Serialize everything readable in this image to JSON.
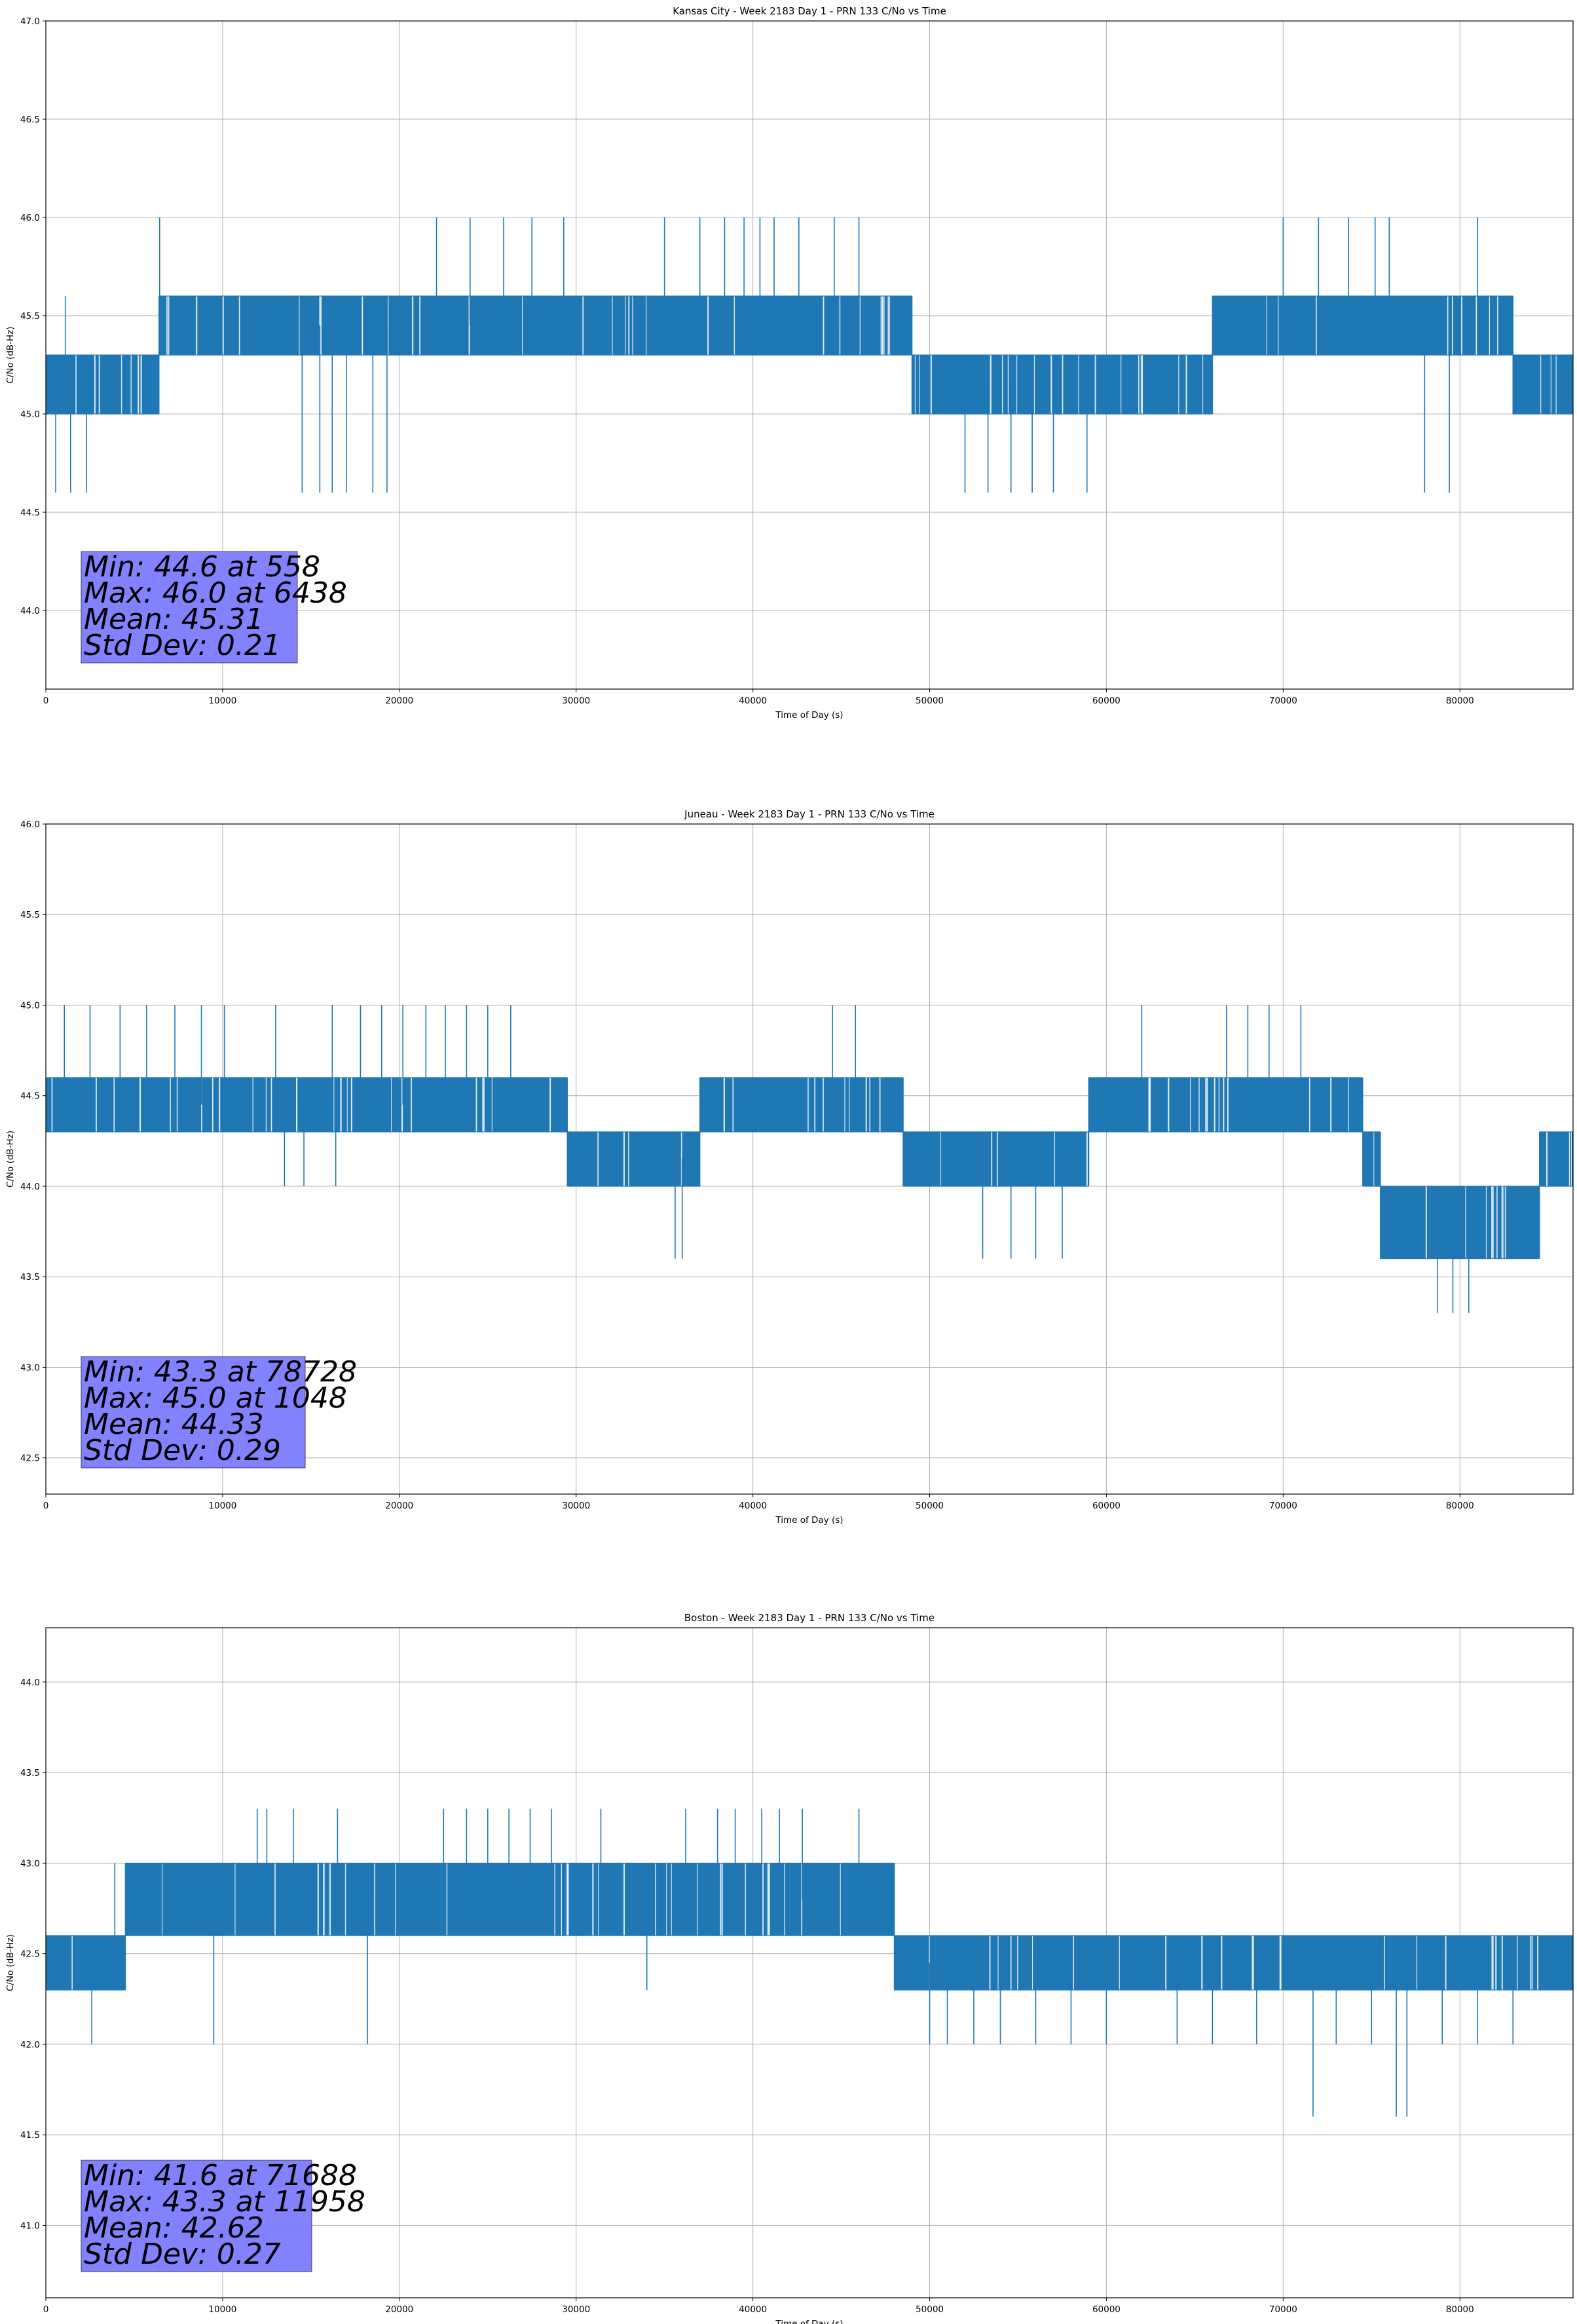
{
  "chart_data": [
    {
      "type": "line",
      "title": "Kansas City - Week 2183 Day 1 - PRN 133 C/No vs Time",
      "xlabel": "Time of Day (s)",
      "ylabel": "C/No (dB-Hz)",
      "xlim": [
        0,
        86400
      ],
      "ylim": [
        43.6,
        47.0
      ],
      "xticks": [
        0,
        10000,
        20000,
        30000,
        40000,
        50000,
        60000,
        70000,
        80000
      ],
      "yticks": [
        44.0,
        44.5,
        45.0,
        45.5,
        46.0,
        46.5,
        47.0
      ],
      "grid": true,
      "series_color": "#1f77b4",
      "stats_box_color": "#8080ff",
      "stats": [
        "Min: 44.6 at 558",
        "Max: 46.0 at 6438",
        "Mean: 45.31",
        "Std Dev: 0.21"
      ],
      "quantization": [
        44.6,
        45.0,
        45.3,
        45.6,
        46.0
      ],
      "regimes": [
        {
          "x": [
            0,
            6400
          ],
          "levels": [
            45.0,
            45.3
          ]
        },
        {
          "x": [
            6400,
            21000
          ],
          "levels": [
            45.3,
            45.6
          ]
        },
        {
          "x": [
            21000,
            49000
          ],
          "levels": [
            45.3,
            45.6
          ]
        },
        {
          "x": [
            49000,
            66000
          ],
          "levels": [
            45.0,
            45.3
          ]
        },
        {
          "x": [
            66000,
            83000
          ],
          "levels": [
            45.3,
            45.6
          ]
        },
        {
          "x": [
            83000,
            86400
          ],
          "levels": [
            45.0,
            45.3
          ]
        }
      ],
      "spikes": [
        {
          "x": 558,
          "y": 44.6
        },
        {
          "x": 1400,
          "y": 44.6
        },
        {
          "x": 2300,
          "y": 44.6
        },
        {
          "x": 1100,
          "y": 45.6
        },
        {
          "x": 6438,
          "y": 46.0
        },
        {
          "x": 14500,
          "y": 44.6
        },
        {
          "x": 15500,
          "y": 44.6
        },
        {
          "x": 16200,
          "y": 44.6
        },
        {
          "x": 17000,
          "y": 44.6
        },
        {
          "x": 18500,
          "y": 44.6
        },
        {
          "x": 19300,
          "y": 44.6
        },
        {
          "x": 22100,
          "y": 46.0
        },
        {
          "x": 24000,
          "y": 46.0
        },
        {
          "x": 25900,
          "y": 46.0
        },
        {
          "x": 27500,
          "y": 46.0
        },
        {
          "x": 29300,
          "y": 46.0
        },
        {
          "x": 35000,
          "y": 46.0
        },
        {
          "x": 37000,
          "y": 46.0
        },
        {
          "x": 38400,
          "y": 46.0
        },
        {
          "x": 39500,
          "y": 46.0
        },
        {
          "x": 40400,
          "y": 46.0
        },
        {
          "x": 41200,
          "y": 46.0
        },
        {
          "x": 42600,
          "y": 46.0
        },
        {
          "x": 44600,
          "y": 46.0
        },
        {
          "x": 46000,
          "y": 46.0
        },
        {
          "x": 52000,
          "y": 44.6
        },
        {
          "x": 53300,
          "y": 44.6
        },
        {
          "x": 54600,
          "y": 44.6
        },
        {
          "x": 55800,
          "y": 44.6
        },
        {
          "x": 57000,
          "y": 44.6
        },
        {
          "x": 58900,
          "y": 44.6
        },
        {
          "x": 70000,
          "y": 46.0
        },
        {
          "x": 72000,
          "y": 46.0
        },
        {
          "x": 73700,
          "y": 46.0
        },
        {
          "x": 75200,
          "y": 46.0
        },
        {
          "x": 76000,
          "y": 46.0
        },
        {
          "x": 81000,
          "y": 46.0
        },
        {
          "x": 78000,
          "y": 44.6
        },
        {
          "x": 79400,
          "y": 44.6
        }
      ]
    },
    {
      "type": "line",
      "title": "Juneau - Week 2183 Day 1 - PRN 133 C/No vs Time",
      "xlabel": "Time of Day (s)",
      "ylabel": "C/No (dB-Hz)",
      "xlim": [
        0,
        86400
      ],
      "ylim": [
        42.3,
        46.0
      ],
      "xticks": [
        0,
        10000,
        20000,
        30000,
        40000,
        50000,
        60000,
        70000,
        80000
      ],
      "yticks": [
        42.5,
        43.0,
        43.5,
        44.0,
        44.5,
        45.0,
        45.5,
        46.0
      ],
      "grid": true,
      "series_color": "#1f77b4",
      "stats_box_color": "#8080ff",
      "stats": [
        "Min: 43.3 at 78728",
        "Max: 45.0 at 1048",
        "Mean: 44.33",
        "Std Dev: 0.29"
      ],
      "quantization": [
        43.3,
        43.6,
        44.0,
        44.3,
        44.6,
        45.0
      ],
      "regimes": [
        {
          "x": [
            0,
            29500
          ],
          "levels": [
            44.3,
            44.6
          ]
        },
        {
          "x": [
            29500,
            37000
          ],
          "levels": [
            44.0,
            44.3
          ]
        },
        {
          "x": [
            37000,
            48500
          ],
          "levels": [
            44.3,
            44.6
          ]
        },
        {
          "x": [
            48500,
            59000
          ],
          "levels": [
            44.0,
            44.3
          ]
        },
        {
          "x": [
            59000,
            74500
          ],
          "levels": [
            44.3,
            44.6
          ]
        },
        {
          "x": [
            74500,
            75500
          ],
          "levels": [
            44.0,
            44.3
          ]
        },
        {
          "x": [
            75500,
            84500
          ],
          "levels": [
            43.6,
            44.0
          ]
        },
        {
          "x": [
            84500,
            86400
          ],
          "levels": [
            44.0,
            44.3
          ]
        }
      ],
      "spikes": [
        {
          "x": 1048,
          "y": 45.0
        },
        {
          "x": 2500,
          "y": 45.0
        },
        {
          "x": 4200,
          "y": 45.0
        },
        {
          "x": 5700,
          "y": 45.0
        },
        {
          "x": 7300,
          "y": 45.0
        },
        {
          "x": 8800,
          "y": 45.0
        },
        {
          "x": 10100,
          "y": 45.0
        },
        {
          "x": 13000,
          "y": 45.0
        },
        {
          "x": 16200,
          "y": 45.0
        },
        {
          "x": 17800,
          "y": 45.0
        },
        {
          "x": 19000,
          "y": 45.0
        },
        {
          "x": 20200,
          "y": 45.0
        },
        {
          "x": 21500,
          "y": 45.0
        },
        {
          "x": 22600,
          "y": 45.0
        },
        {
          "x": 23800,
          "y": 45.0
        },
        {
          "x": 25000,
          "y": 45.0
        },
        {
          "x": 26300,
          "y": 45.0
        },
        {
          "x": 13500,
          "y": 44.0
        },
        {
          "x": 14600,
          "y": 44.0
        },
        {
          "x": 16400,
          "y": 44.0
        },
        {
          "x": 35600,
          "y": 43.6
        },
        {
          "x": 36000,
          "y": 43.6
        },
        {
          "x": 44500,
          "y": 45.0
        },
        {
          "x": 45800,
          "y": 45.0
        },
        {
          "x": 53000,
          "y": 43.6
        },
        {
          "x": 54600,
          "y": 43.6
        },
        {
          "x": 56000,
          "y": 43.6
        },
        {
          "x": 57500,
          "y": 43.6
        },
        {
          "x": 62000,
          "y": 45.0
        },
        {
          "x": 66800,
          "y": 45.0
        },
        {
          "x": 68000,
          "y": 45.0
        },
        {
          "x": 69200,
          "y": 45.0
        },
        {
          "x": 71000,
          "y": 45.0
        },
        {
          "x": 78728,
          "y": 43.3
        },
        {
          "x": 79600,
          "y": 43.3
        },
        {
          "x": 80500,
          "y": 43.3
        }
      ]
    },
    {
      "type": "line",
      "title": "Boston - Week 2183 Day 1 - PRN 133 C/No vs Time",
      "xlabel": "Time of Day (s)",
      "ylabel": "C/No (dB-Hz)",
      "xlim": [
        0,
        86400
      ],
      "ylim": [
        40.6,
        44.3
      ],
      "xticks": [
        0,
        10000,
        20000,
        30000,
        40000,
        50000,
        60000,
        70000,
        80000
      ],
      "yticks": [
        41.0,
        41.5,
        42.0,
        42.5,
        43.0,
        43.5,
        44.0
      ],
      "grid": true,
      "series_color": "#1f77b4",
      "stats_box_color": "#8080ff",
      "stats": [
        "Min: 41.6 at 71688",
        "Max: 43.3 at 11958",
        "Mean: 42.62",
        "Std Dev: 0.27"
      ],
      "quantization": [
        41.6,
        42.0,
        42.3,
        42.6,
        43.0,
        43.3
      ],
      "regimes": [
        {
          "x": [
            0,
            4500
          ],
          "levels": [
            42.3,
            42.6
          ]
        },
        {
          "x": [
            4500,
            48000
          ],
          "levels": [
            42.6,
            43.0
          ]
        },
        {
          "x": [
            48000,
            86400
          ],
          "levels": [
            42.3,
            42.6
          ]
        }
      ],
      "spikes": [
        {
          "x": 2600,
          "y": 42.0
        },
        {
          "x": 3900,
          "y": 43.0
        },
        {
          "x": 9500,
          "y": 42.0
        },
        {
          "x": 11958,
          "y": 43.3
        },
        {
          "x": 12500,
          "y": 43.3
        },
        {
          "x": 14000,
          "y": 43.3
        },
        {
          "x": 16500,
          "y": 43.3
        },
        {
          "x": 18200,
          "y": 42.0
        },
        {
          "x": 22500,
          "y": 43.3
        },
        {
          "x": 23800,
          "y": 43.3
        },
        {
          "x": 25000,
          "y": 43.3
        },
        {
          "x": 26200,
          "y": 43.3
        },
        {
          "x": 27400,
          "y": 43.3
        },
        {
          "x": 28600,
          "y": 43.3
        },
        {
          "x": 31400,
          "y": 43.3
        },
        {
          "x": 34000,
          "y": 42.3
        },
        {
          "x": 36200,
          "y": 43.3
        },
        {
          "x": 38000,
          "y": 43.3
        },
        {
          "x": 39000,
          "y": 43.3
        },
        {
          "x": 40500,
          "y": 43.3
        },
        {
          "x": 41500,
          "y": 43.3
        },
        {
          "x": 42800,
          "y": 43.3
        },
        {
          "x": 46000,
          "y": 43.3
        },
        {
          "x": 50000,
          "y": 42.0
        },
        {
          "x": 51000,
          "y": 42.0
        },
        {
          "x": 52500,
          "y": 42.0
        },
        {
          "x": 54000,
          "y": 42.0
        },
        {
          "x": 56000,
          "y": 42.0
        },
        {
          "x": 58000,
          "y": 42.0
        },
        {
          "x": 60000,
          "y": 42.0
        },
        {
          "x": 64000,
          "y": 42.0
        },
        {
          "x": 66000,
          "y": 42.0
        },
        {
          "x": 68500,
          "y": 42.0
        },
        {
          "x": 71688,
          "y": 41.6
        },
        {
          "x": 73000,
          "y": 42.0
        },
        {
          "x": 75000,
          "y": 42.0
        },
        {
          "x": 76400,
          "y": 41.6
        },
        {
          "x": 77000,
          "y": 41.6
        },
        {
          "x": 79000,
          "y": 42.0
        },
        {
          "x": 81000,
          "y": 42.0
        },
        {
          "x": 83000,
          "y": 42.0
        }
      ]
    }
  ]
}
